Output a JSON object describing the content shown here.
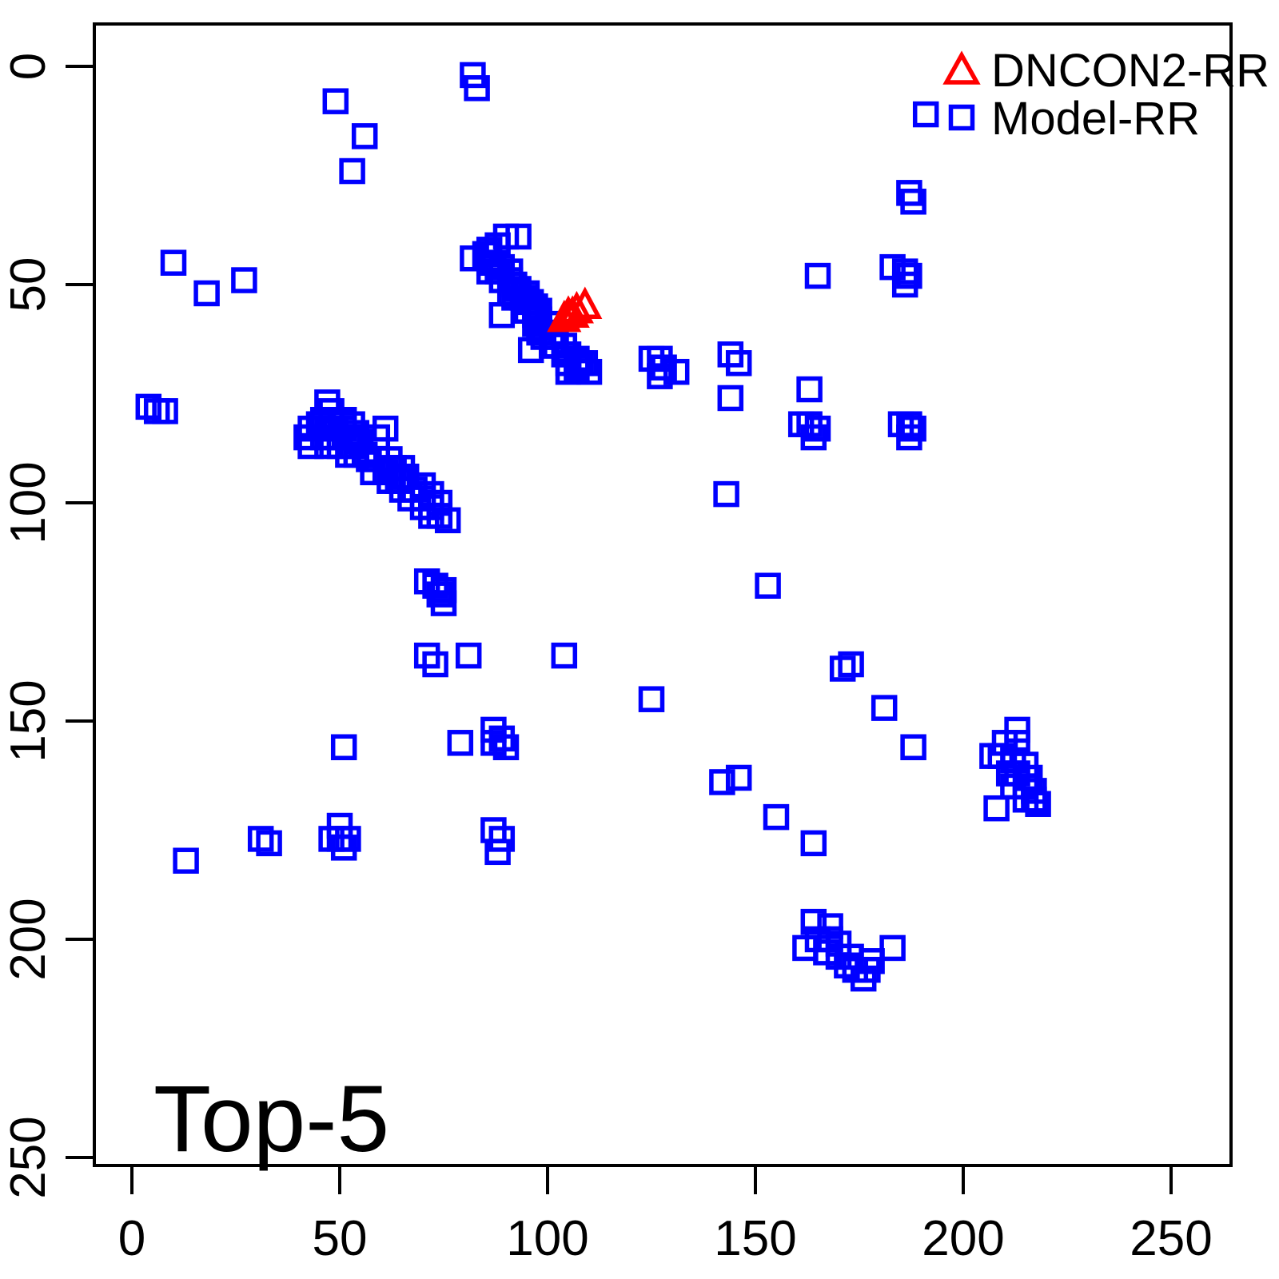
{
  "figure": {
    "title": "Top-5",
    "colors": {
      "model_rr": "#0000FF",
      "dncon2_rr": "#FF0000",
      "axis": "#000000",
      "background": "#FFFFFF"
    }
  },
  "axes": {
    "x_ticks": [
      "0",
      "50",
      "100",
      "150",
      "200",
      "250"
    ],
    "y_ticks": [
      "0",
      "50",
      "100",
      "150",
      "200",
      "250"
    ]
  },
  "legend": {
    "items": [
      {
        "label": "DNCON2-RR",
        "marker": "triangle-open",
        "color": "#FF0000"
      },
      {
        "label": "Model-RR",
        "marker": "square-open",
        "color": "#0000FF"
      }
    ]
  },
  "chart_data": {
    "type": "scatter",
    "title": "Top-5",
    "xlabel": "",
    "ylabel": "",
    "xlim": [
      0,
      250
    ],
    "ylim": [
      0,
      250
    ],
    "y_axis_reversed": true,
    "grid": false,
    "legend_position": "top-right",
    "x_tick_values": [
      0,
      50,
      100,
      150,
      200,
      250
    ],
    "y_tick_values": [
      0,
      50,
      100,
      150,
      200,
      250
    ],
    "series": [
      {
        "name": "DNCON2-RR",
        "marker": "triangle-open",
        "color": "#FF0000",
        "points": [
          [
            104,
            58
          ],
          [
            105,
            57
          ],
          [
            106,
            57
          ],
          [
            107,
            56
          ],
          [
            109,
            55
          ]
        ]
      },
      {
        "name": "Model-RR",
        "marker": "square-open",
        "color": "#0000FF",
        "points": [
          [
            82,
            2
          ],
          [
            83,
            5
          ],
          [
            49,
            8
          ],
          [
            191,
            11
          ],
          [
            56,
            16
          ],
          [
            53,
            24
          ],
          [
            187,
            29
          ],
          [
            188,
            31
          ],
          [
            10,
            45
          ],
          [
            18,
            52
          ],
          [
            27,
            49
          ],
          [
            165,
            48
          ],
          [
            183,
            46
          ],
          [
            186,
            47
          ],
          [
            187,
            48
          ],
          [
            186,
            50
          ],
          [
            82,
            44
          ],
          [
            85,
            43
          ],
          [
            86,
            42
          ],
          [
            88,
            41
          ],
          [
            90,
            39
          ],
          [
            93,
            39
          ],
          [
            86,
            45
          ],
          [
            87,
            45
          ],
          [
            89,
            46
          ],
          [
            91,
            47
          ],
          [
            86,
            47
          ],
          [
            88,
            47
          ],
          [
            89,
            49
          ],
          [
            91,
            49
          ],
          [
            92,
            50
          ],
          [
            91,
            52
          ],
          [
            93,
            51
          ],
          [
            92,
            53
          ],
          [
            94,
            53
          ],
          [
            95,
            52
          ],
          [
            96,
            54
          ],
          [
            95,
            56
          ],
          [
            97,
            55
          ],
          [
            97,
            57
          ],
          [
            98,
            56
          ],
          [
            89,
            57
          ],
          [
            98,
            58
          ],
          [
            97,
            59
          ],
          [
            98,
            60
          ],
          [
            100,
            59
          ],
          [
            98,
            61
          ],
          [
            99,
            62
          ],
          [
            101,
            61
          ],
          [
            102,
            62
          ],
          [
            101,
            64
          ],
          [
            102,
            64
          ],
          [
            104,
            64
          ],
          [
            96,
            65
          ],
          [
            104,
            66
          ],
          [
            105,
            66
          ],
          [
            107,
            67
          ],
          [
            105,
            68
          ],
          [
            107,
            69
          ],
          [
            108,
            68
          ],
          [
            109,
            68
          ],
          [
            105,
            70
          ],
          [
            110,
            70
          ],
          [
            125,
            67
          ],
          [
            127,
            67
          ],
          [
            128,
            69
          ],
          [
            127,
            71
          ],
          [
            131,
            70
          ],
          [
            144,
            66
          ],
          [
            146,
            68
          ],
          [
            144,
            76
          ],
          [
            163,
            74
          ],
          [
            4,
            78
          ],
          [
            6,
            79
          ],
          [
            8,
            79
          ],
          [
            161,
            82
          ],
          [
            163,
            82
          ],
          [
            165,
            83
          ],
          [
            164,
            85
          ],
          [
            185,
            82
          ],
          [
            187,
            82
          ],
          [
            188,
            83
          ],
          [
            187,
            85
          ],
          [
            47,
            77
          ],
          [
            48,
            79
          ],
          [
            46,
            81
          ],
          [
            48,
            81
          ],
          [
            51,
            81
          ],
          [
            43,
            83
          ],
          [
            45,
            82
          ],
          [
            47,
            83
          ],
          [
            49,
            83
          ],
          [
            51,
            83
          ],
          [
            53,
            82
          ],
          [
            42,
            85
          ],
          [
            46,
            85
          ],
          [
            48,
            85
          ],
          [
            50,
            85
          ],
          [
            52,
            85
          ],
          [
            54,
            84
          ],
          [
            43,
            87
          ],
          [
            47,
            87
          ],
          [
            50,
            87
          ],
          [
            53,
            87
          ],
          [
            55,
            86
          ],
          [
            52,
            89
          ],
          [
            54,
            89
          ],
          [
            56,
            89
          ],
          [
            61,
            83
          ],
          [
            59,
            85
          ],
          [
            57,
            90
          ],
          [
            59,
            90
          ],
          [
            62,
            90
          ],
          [
            58,
            93
          ],
          [
            61,
            93
          ],
          [
            63,
            92
          ],
          [
            65,
            92
          ],
          [
            62,
            95
          ],
          [
            64,
            95
          ],
          [
            66,
            94
          ],
          [
            65,
            97
          ],
          [
            68,
            97
          ],
          [
            70,
            96
          ],
          [
            67,
            99
          ],
          [
            70,
            99
          ],
          [
            72,
            98
          ],
          [
            70,
            101
          ],
          [
            72,
            101
          ],
          [
            74,
            100
          ],
          [
            72,
            103
          ],
          [
            74,
            103
          ],
          [
            76,
            104
          ],
          [
            143,
            98
          ],
          [
            71,
            118
          ],
          [
            73,
            119
          ],
          [
            75,
            120
          ],
          [
            74,
            121
          ],
          [
            75,
            123
          ],
          [
            153,
            119
          ],
          [
            71,
            135
          ],
          [
            73,
            137
          ],
          [
            81,
            135
          ],
          [
            104,
            135
          ],
          [
            125,
            145
          ],
          [
            171,
            138
          ],
          [
            173,
            137
          ],
          [
            181,
            147
          ],
          [
            51,
            156
          ],
          [
            79,
            155
          ],
          [
            87,
            152
          ],
          [
            89,
            154
          ],
          [
            87,
            155
          ],
          [
            90,
            156
          ],
          [
            188,
            156
          ],
          [
            142,
            164
          ],
          [
            146,
            163
          ],
          [
            155,
            172
          ],
          [
            164,
            178
          ],
          [
            213,
            152
          ],
          [
            210,
            155
          ],
          [
            213,
            155
          ],
          [
            207,
            158
          ],
          [
            209,
            158
          ],
          [
            212,
            159
          ],
          [
            215,
            160
          ],
          [
            211,
            162
          ],
          [
            213,
            162
          ],
          [
            216,
            163
          ],
          [
            212,
            165
          ],
          [
            215,
            165
          ],
          [
            217,
            166
          ],
          [
            215,
            168
          ],
          [
            217,
            168
          ],
          [
            218,
            169
          ],
          [
            208,
            170
          ],
          [
            13,
            182
          ],
          [
            31,
            177
          ],
          [
            33,
            178
          ],
          [
            50,
            174
          ],
          [
            48,
            177
          ],
          [
            50,
            177
          ],
          [
            52,
            177
          ],
          [
            51,
            179
          ],
          [
            87,
            175
          ],
          [
            89,
            177
          ],
          [
            88,
            180
          ],
          [
            164,
            196
          ],
          [
            168,
            197
          ],
          [
            165,
            200
          ],
          [
            168,
            200
          ],
          [
            170,
            201
          ],
          [
            162,
            202
          ],
          [
            167,
            203
          ],
          [
            170,
            204
          ],
          [
            173,
            204
          ],
          [
            178,
            205
          ],
          [
            172,
            206
          ],
          [
            174,
            207
          ],
          [
            177,
            207
          ],
          [
            176,
            209
          ],
          [
            183,
            202
          ]
        ]
      }
    ]
  }
}
